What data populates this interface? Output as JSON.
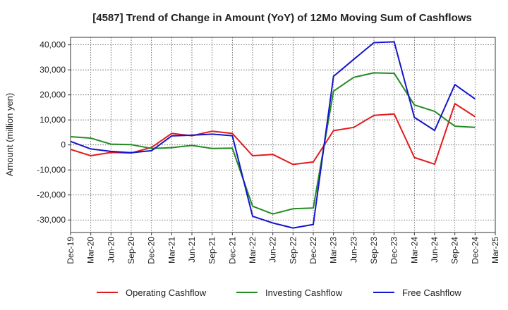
{
  "chart_data": {
    "type": "line",
    "title": "[4587]  Trend of Change in Amount (YoY) of 12Mo Moving Sum of Cashflows",
    "xlabel": "",
    "ylabel": "Amount (million yen)",
    "ylim": [
      -35000,
      43000
    ],
    "yticks": [
      -30000,
      -20000,
      -10000,
      0,
      10000,
      20000,
      30000,
      40000
    ],
    "ytick_labels": [
      "-30,000",
      "-20,000",
      "-10,000",
      "0",
      "10,000",
      "20,000",
      "30,000",
      "40,000"
    ],
    "grid": true,
    "legend_position": "bottom",
    "categories": [
      "Dec-19",
      "Mar-20",
      "Jun-20",
      "Sep-20",
      "Dec-20",
      "Mar-21",
      "Jun-21",
      "Sep-21",
      "Dec-21",
      "Mar-22",
      "Jun-22",
      "Sep-22",
      "Dec-22",
      "Mar-23",
      "Jun-23",
      "Sep-23",
      "Dec-23",
      "Mar-24",
      "Jun-24",
      "Sep-24",
      "Dec-24",
      "Mar-25"
    ],
    "series": [
      {
        "name": "Operating Cashflow",
        "color": "#e31a1c",
        "values": [
          -1800,
          -4300,
          -3000,
          -3200,
          -1000,
          4600,
          3700,
          5500,
          4600,
          -4300,
          -3800,
          -7800,
          -6800,
          5700,
          7000,
          11800,
          12400,
          -5000,
          -7700,
          16500,
          11300,
          null
        ]
      },
      {
        "name": "Investing Cashflow",
        "color": "#238b23",
        "values": [
          3300,
          2700,
          300,
          100,
          -1400,
          -1100,
          -200,
          -1400,
          -1300,
          -24500,
          -27600,
          -25500,
          -25200,
          21500,
          27000,
          28800,
          28600,
          16000,
          13400,
          7500,
          7000,
          null
        ]
      },
      {
        "name": "Free Cashflow",
        "color": "#1515cc",
        "values": [
          1400,
          -1600,
          -2600,
          -3100,
          -2300,
          3600,
          3900,
          4300,
          3700,
          -28500,
          -31200,
          -33200,
          -31800,
          27400,
          34200,
          40900,
          41200,
          11000,
          5800,
          24100,
          18400,
          null
        ]
      }
    ]
  }
}
